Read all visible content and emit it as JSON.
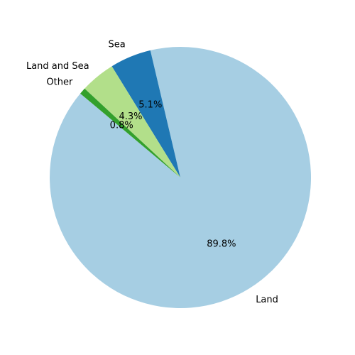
{
  "chart_data": {
    "type": "pie",
    "title": "",
    "start_angle_deg": 140,
    "direction": "counterclockwise",
    "slices": [
      {
        "label": "Land",
        "value": 89.8,
        "pct_label": "89.8%",
        "color": "#a6cee3"
      },
      {
        "label": "Sea",
        "value": 5.1,
        "pct_label": "5.1%",
        "color": "#1f78b4"
      },
      {
        "label": "Land and Sea",
        "value": 4.3,
        "pct_label": "4.3%",
        "color": "#b2df8a"
      },
      {
        "label": "Other",
        "value": 0.8,
        "pct_label": "0.8%",
        "color": "#33a02c"
      }
    ]
  }
}
